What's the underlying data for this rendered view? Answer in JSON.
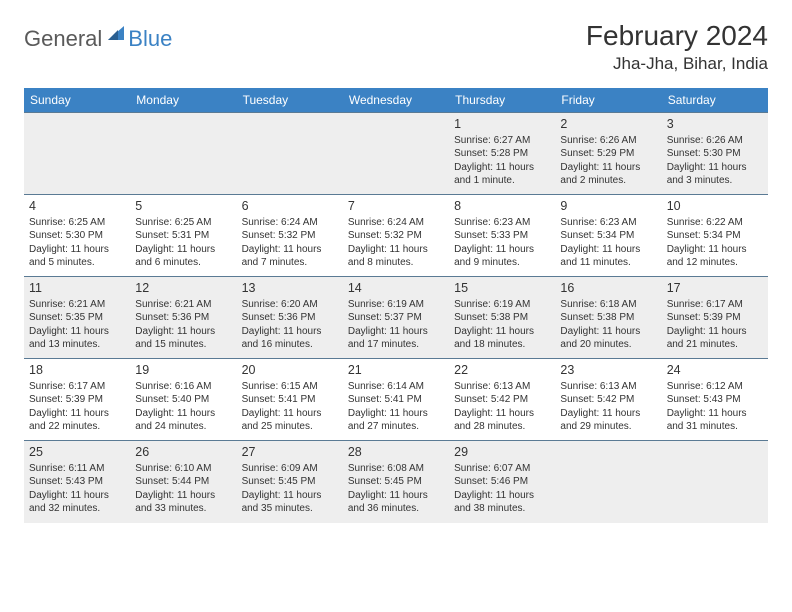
{
  "logo": {
    "part1": "General",
    "part2": "Blue"
  },
  "title": "February 2024",
  "location": "Jha-Jha, Bihar, India",
  "dayHeaders": [
    "Sunday",
    "Monday",
    "Tuesday",
    "Wednesday",
    "Thursday",
    "Friday",
    "Saturday"
  ],
  "colors": {
    "headerBg": "#3b82c4",
    "headerText": "#ffffff",
    "altRowBg": "#eeeeee",
    "borderColor": "#5a7a94",
    "textColor": "#333333",
    "logoGray": "#5a5a5a",
    "logoBlue": "#3b82c4"
  },
  "weeks": [
    {
      "alt": true,
      "days": [
        null,
        null,
        null,
        null,
        {
          "n": "1",
          "sr": "6:27 AM",
          "ss": "5:28 PM",
          "dl": "11 hours and 1 minute."
        },
        {
          "n": "2",
          "sr": "6:26 AM",
          "ss": "5:29 PM",
          "dl": "11 hours and 2 minutes."
        },
        {
          "n": "3",
          "sr": "6:26 AM",
          "ss": "5:30 PM",
          "dl": "11 hours and 3 minutes."
        }
      ]
    },
    {
      "alt": false,
      "days": [
        {
          "n": "4",
          "sr": "6:25 AM",
          "ss": "5:30 PM",
          "dl": "11 hours and 5 minutes."
        },
        {
          "n": "5",
          "sr": "6:25 AM",
          "ss": "5:31 PM",
          "dl": "11 hours and 6 minutes."
        },
        {
          "n": "6",
          "sr": "6:24 AM",
          "ss": "5:32 PM",
          "dl": "11 hours and 7 minutes."
        },
        {
          "n": "7",
          "sr": "6:24 AM",
          "ss": "5:32 PM",
          "dl": "11 hours and 8 minutes."
        },
        {
          "n": "8",
          "sr": "6:23 AM",
          "ss": "5:33 PM",
          "dl": "11 hours and 9 minutes."
        },
        {
          "n": "9",
          "sr": "6:23 AM",
          "ss": "5:34 PM",
          "dl": "11 hours and 11 minutes."
        },
        {
          "n": "10",
          "sr": "6:22 AM",
          "ss": "5:34 PM",
          "dl": "11 hours and 12 minutes."
        }
      ]
    },
    {
      "alt": true,
      "days": [
        {
          "n": "11",
          "sr": "6:21 AM",
          "ss": "5:35 PM",
          "dl": "11 hours and 13 minutes."
        },
        {
          "n": "12",
          "sr": "6:21 AM",
          "ss": "5:36 PM",
          "dl": "11 hours and 15 minutes."
        },
        {
          "n": "13",
          "sr": "6:20 AM",
          "ss": "5:36 PM",
          "dl": "11 hours and 16 minutes."
        },
        {
          "n": "14",
          "sr": "6:19 AM",
          "ss": "5:37 PM",
          "dl": "11 hours and 17 minutes."
        },
        {
          "n": "15",
          "sr": "6:19 AM",
          "ss": "5:38 PM",
          "dl": "11 hours and 18 minutes."
        },
        {
          "n": "16",
          "sr": "6:18 AM",
          "ss": "5:38 PM",
          "dl": "11 hours and 20 minutes."
        },
        {
          "n": "17",
          "sr": "6:17 AM",
          "ss": "5:39 PM",
          "dl": "11 hours and 21 minutes."
        }
      ]
    },
    {
      "alt": false,
      "days": [
        {
          "n": "18",
          "sr": "6:17 AM",
          "ss": "5:39 PM",
          "dl": "11 hours and 22 minutes."
        },
        {
          "n": "19",
          "sr": "6:16 AM",
          "ss": "5:40 PM",
          "dl": "11 hours and 24 minutes."
        },
        {
          "n": "20",
          "sr": "6:15 AM",
          "ss": "5:41 PM",
          "dl": "11 hours and 25 minutes."
        },
        {
          "n": "21",
          "sr": "6:14 AM",
          "ss": "5:41 PM",
          "dl": "11 hours and 27 minutes."
        },
        {
          "n": "22",
          "sr": "6:13 AM",
          "ss": "5:42 PM",
          "dl": "11 hours and 28 minutes."
        },
        {
          "n": "23",
          "sr": "6:13 AM",
          "ss": "5:42 PM",
          "dl": "11 hours and 29 minutes."
        },
        {
          "n": "24",
          "sr": "6:12 AM",
          "ss": "5:43 PM",
          "dl": "11 hours and 31 minutes."
        }
      ]
    },
    {
      "alt": true,
      "days": [
        {
          "n": "25",
          "sr": "6:11 AM",
          "ss": "5:43 PM",
          "dl": "11 hours and 32 minutes."
        },
        {
          "n": "26",
          "sr": "6:10 AM",
          "ss": "5:44 PM",
          "dl": "11 hours and 33 minutes."
        },
        {
          "n": "27",
          "sr": "6:09 AM",
          "ss": "5:45 PM",
          "dl": "11 hours and 35 minutes."
        },
        {
          "n": "28",
          "sr": "6:08 AM",
          "ss": "5:45 PM",
          "dl": "11 hours and 36 minutes."
        },
        {
          "n": "29",
          "sr": "6:07 AM",
          "ss": "5:46 PM",
          "dl": "11 hours and 38 minutes."
        },
        null,
        null
      ]
    }
  ],
  "labels": {
    "sunrise": "Sunrise: ",
    "sunset": "Sunset: ",
    "daylight": "Daylight: "
  }
}
